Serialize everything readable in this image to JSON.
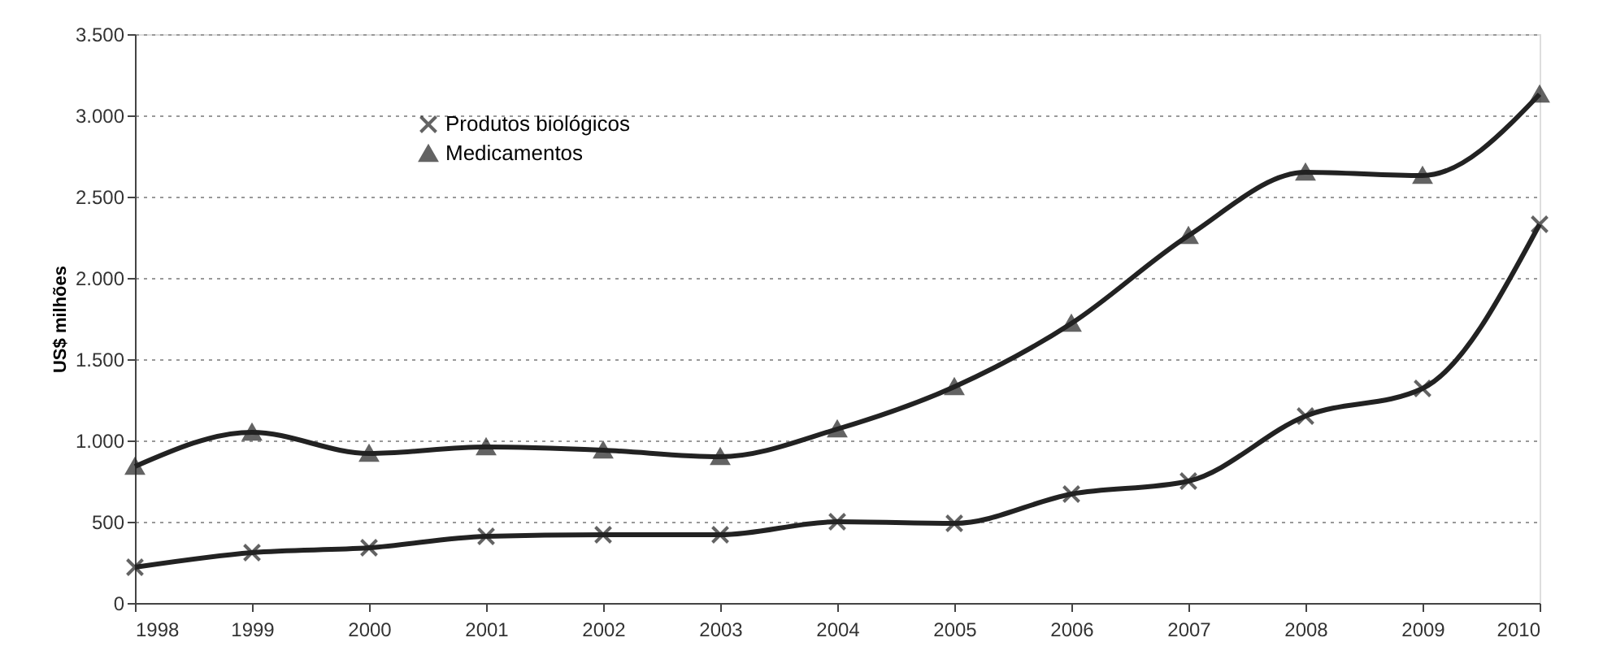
{
  "chart_data": {
    "type": "line",
    "ylabel": "US$ milhões",
    "categories": [
      "1998",
      "1999",
      "2000",
      "2001",
      "2002",
      "2003",
      "2004",
      "2005",
      "2006",
      "2007",
      "2008",
      "2009",
      "2010"
    ],
    "series": [
      {
        "name": "Produtos biológicos",
        "color": "#222222",
        "marker": "cross",
        "values": [
          220,
          310,
          340,
          410,
          420,
          420,
          500,
          490,
          670,
          750,
          1150,
          1320,
          2330
        ]
      },
      {
        "name": "Medicamentos",
        "color": "#222222",
        "marker": "triangle",
        "values": [
          840,
          1050,
          920,
          960,
          940,
          900,
          1070,
          1330,
          1720,
          2260,
          2650,
          2630,
          3130
        ]
      }
    ],
    "ylim": [
      0,
      3500
    ],
    "yticks": [
      0,
      500,
      {
        "value": 1000,
        "label": "1.000"
      },
      {
        "value": 1500,
        "label": "1.500"
      },
      {
        "value": 2000,
        "label": "2.000"
      },
      {
        "value": 2500,
        "label": "2.500"
      },
      {
        "value": 3000,
        "label": "3.000"
      },
      {
        "value": 3500,
        "label": "3.500"
      }
    ],
    "grid": "y",
    "legend": "top left",
    "line_style": "solid"
  }
}
